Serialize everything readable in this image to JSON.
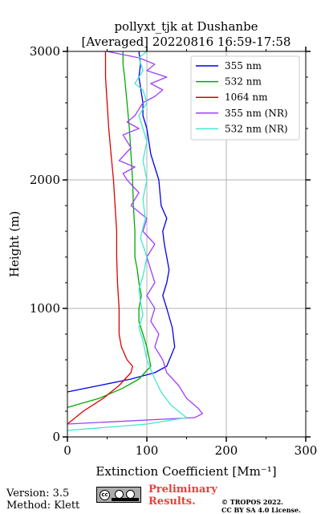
{
  "chart_data": {
    "type": "line",
    "title": "pollyxt_tjk at Dushanbe",
    "subtitle": "[Averaged] 20220816 16:59-17:58",
    "xlabel": "Extinction Coefficient [Mm⁻¹]",
    "ylabel": "Height (m)",
    "xlim": [
      0,
      300
    ],
    "ylim": [
      0,
      3000
    ],
    "xticks": [
      0,
      100,
      200,
      300
    ],
    "yticks": [
      0,
      1000,
      2000,
      3000
    ],
    "grid": true,
    "legend_position": "top-right",
    "series": [
      {
        "name": "355 nm",
        "color": "#0000ee",
        "x": [
          0,
          40,
          80,
          110,
          125,
          135,
          132,
          125,
          120,
          125,
          128,
          125,
          122,
          120,
          125,
          118,
          115,
          105,
          100,
          95,
          95,
          90,
          92,
          90
        ],
        "y": [
          350,
          400,
          450,
          500,
          550,
          700,
          850,
          1000,
          1100,
          1200,
          1300,
          1400,
          1500,
          1600,
          1700,
          1800,
          2000,
          2200,
          2400,
          2500,
          2600,
          2800,
          2900,
          3000
        ]
      },
      {
        "name": "532 nm",
        "color": "#00aa00",
        "x": [
          0,
          40,
          70,
          90,
          105,
          100,
          95,
          90,
          90,
          93,
          90,
          88,
          85,
          85,
          83,
          82,
          80,
          78,
          75,
          72,
          70,
          70
        ],
        "y": [
          230,
          300,
          380,
          450,
          550,
          700,
          800,
          900,
          1000,
          1100,
          1200,
          1300,
          1400,
          1600,
          1800,
          2000,
          2200,
          2400,
          2600,
          2800,
          2900,
          3000
        ]
      },
      {
        "name": "1064 nm",
        "color": "#dd0000",
        "x": [
          0,
          20,
          45,
          65,
          80,
          82,
          75,
          68,
          65,
          65,
          63,
          62,
          62,
          60,
          58,
          55,
          52,
          50,
          48,
          48
        ],
        "y": [
          100,
          200,
          300,
          400,
          500,
          550,
          600,
          700,
          800,
          1000,
          1200,
          1400,
          1600,
          1800,
          2000,
          2200,
          2400,
          2600,
          2800,
          3000
        ]
      },
      {
        "name": "355 nm (NR)",
        "color": "#a040ff",
        "x": [
          0,
          160,
          170,
          165,
          150,
          140,
          125,
          120,
          110,
          115,
          105,
          110,
          100,
          110,
          105,
          100,
          110,
          95,
          100,
          80,
          90,
          75,
          70,
          85,
          65,
          80,
          70,
          90,
          75,
          85,
          95,
          110,
          120,
          105,
          125,
          100,
          110,
          90,
          50
        ],
        "y": [
          100,
          150,
          180,
          220,
          300,
          400,
          500,
          600,
          700,
          800,
          900,
          1000,
          1100,
          1200,
          1300,
          1400,
          1500,
          1600,
          1700,
          1800,
          1900,
          2000,
          2050,
          2100,
          2150,
          2250,
          2350,
          2400,
          2450,
          2500,
          2600,
          2650,
          2700,
          2750,
          2800,
          2850,
          2900,
          2950,
          3000
        ]
      },
      {
        "name": "532 nm (NR)",
        "color": "#40e8d0",
        "x": [
          0,
          100,
          150,
          130,
          118,
          110,
          100,
          95,
          90,
          95,
          92,
          90,
          95,
          100,
          92,
          98,
          95,
          100,
          95,
          100,
          95,
          90,
          100,
          95,
          85,
          95,
          90,
          100
        ],
        "y": [
          50,
          100,
          150,
          250,
          350,
          450,
          600,
          750,
          850,
          950,
          1050,
          1150,
          1250,
          1400,
          1550,
          1700,
          1850,
          2000,
          2150,
          2300,
          2400,
          2500,
          2600,
          2700,
          2750,
          2850,
          2950,
          3000
        ]
      }
    ]
  },
  "footer": {
    "version": "Version: 3.5",
    "method": "Method: Klett",
    "preliminary": [
      "Preliminary",
      "Results."
    ],
    "copyright": [
      "© TROPOS 2022.",
      "CC BY SA 4.0 License."
    ]
  },
  "logo_lettering": [
    "cc",
    "BY",
    "SA"
  ]
}
